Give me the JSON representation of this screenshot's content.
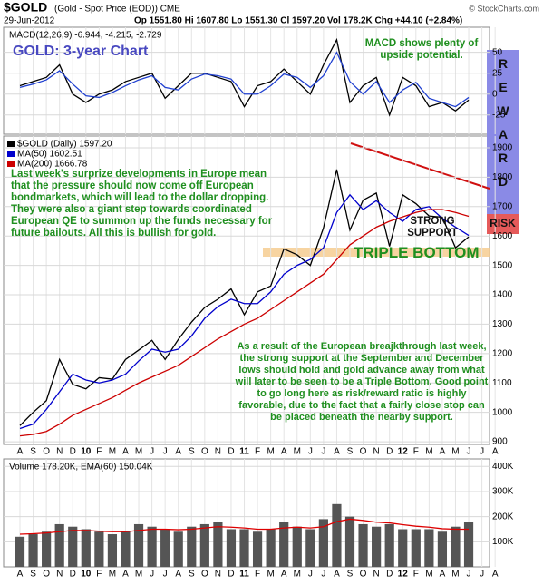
{
  "header": {
    "symbol": "$GOLD",
    "description": "(Gold - Spot Price (EOD)) CME",
    "date": "29-Jun-2012",
    "quote": "Op 1551.80 Hi 1607.80 Lo 1551.30 Cl 1597.20 Vol 178.2K Chg +44.10 (+2.84%)",
    "credit": "© StockCharts.com"
  },
  "chart_data": [
    {
      "type": "line",
      "title": "MACD(12,26,9) -6.944, -4.215, -2.729",
      "annotations": [
        "GOLD: 3-year Chart",
        "MACD shows plenty of upside potential."
      ],
      "categories": [
        "A",
        "S",
        "O",
        "N",
        "D",
        "10",
        "F",
        "M",
        "A",
        "M",
        "J",
        "J",
        "A",
        "S",
        "O",
        "N",
        "D",
        "11",
        "F",
        "M",
        "A",
        "M",
        "J",
        "J",
        "A",
        "S",
        "O",
        "N",
        "D",
        "12",
        "F",
        "M",
        "A",
        "M",
        "J",
        "J",
        "A"
      ],
      "series": [
        {
          "color": "#000000",
          "values": [
            10,
            15,
            20,
            35,
            0,
            -10,
            0,
            5,
            15,
            20,
            25,
            -5,
            10,
            25,
            25,
            20,
            15,
            -15,
            10,
            15,
            30,
            15,
            0,
            35,
            65,
            -10,
            10,
            20,
            -25,
            20,
            10,
            -15,
            -10,
            -20,
            -7,
            null,
            null
          ]
        },
        {
          "color": "#2040d0",
          "values": [
            8,
            12,
            17,
            28,
            12,
            -2,
            -4,
            2,
            10,
            17,
            22,
            8,
            5,
            18,
            24,
            22,
            18,
            0,
            0,
            10,
            24,
            20,
            8,
            22,
            50,
            15,
            0,
            15,
            -10,
            5,
            14,
            -5,
            -10,
            -15,
            -4,
            null,
            null
          ]
        }
      ],
      "ylim": [
        -48,
        80
      ],
      "yticks": [
        -25,
        0,
        25,
        50
      ],
      "grid": true
    },
    {
      "type": "line",
      "annotations": [
        "Last week's surprize developments in Europe mean that the pressure should now come off European bondmarkets, which will lead to the dollar dropping. They were also a giant step towards coordinated European QE to summon up the funds necessary for future bailouts. All this is bullish for gold.",
        "STRONG SUPPORT",
        "TRIPLE BOTTOM",
        "As a result of the European breajkthrough last week, the strong support at the September and December lows should hold and gold advance away from what will later to be seen to be a Triple Bottom. Good point to go long here as risk/reward ratio is highly favorable, due to the fact that a fairly close stop can be placed beneath the nearby support.",
        "REWARD",
        "RISK"
      ],
      "categories": [
        "A",
        "S",
        "O",
        "N",
        "D",
        "10",
        "F",
        "M",
        "A",
        "M",
        "J",
        "J",
        "A",
        "S",
        "O",
        "N",
        "D",
        "11",
        "F",
        "M",
        "A",
        "M",
        "J",
        "J",
        "A",
        "S",
        "O",
        "N",
        "D",
        "12",
        "F",
        "M",
        "A",
        "M",
        "J",
        "J",
        "A"
      ],
      "series": [
        {
          "name": "$GOLD (Daily) 1597.20",
          "color": "#000000",
          "values": [
            955,
            1000,
            1040,
            1180,
            1095,
            1080,
            1118,
            1113,
            1180,
            1212,
            1245,
            1180,
            1248,
            1307,
            1357,
            1385,
            1420,
            1332,
            1410,
            1430,
            1556,
            1536,
            1500,
            1628,
            1826,
            1620,
            1722,
            1746,
            1565,
            1740,
            1710,
            1668,
            1664,
            1560,
            1597,
            null,
            null
          ]
        },
        {
          "name": "MA(50) 1602.51",
          "color": "#0000cc",
          "values": [
            945,
            960,
            1010,
            1070,
            1130,
            1110,
            1100,
            1110,
            1130,
            1175,
            1215,
            1205,
            1215,
            1260,
            1320,
            1360,
            1385,
            1370,
            1370,
            1410,
            1470,
            1500,
            1520,
            1560,
            1680,
            1740,
            1690,
            1720,
            1680,
            1650,
            1690,
            1700,
            1660,
            1630,
            1602,
            null,
            null
          ]
        },
        {
          "name": "MA(200) 1666.78",
          "color": "#cc0000",
          "values": [
            920,
            925,
            935,
            960,
            990,
            1010,
            1030,
            1050,
            1075,
            1100,
            1120,
            1140,
            1160,
            1190,
            1220,
            1250,
            1275,
            1300,
            1320,
            1350,
            1380,
            1410,
            1440,
            1470,
            1520,
            1570,
            1600,
            1630,
            1650,
            1665,
            1680,
            1690,
            1690,
            1680,
            1667,
            null,
            null
          ]
        }
      ],
      "ylim": [
        891,
        1940
      ],
      "yticks": [
        900,
        1000,
        1100,
        1200,
        1300,
        1400,
        1500,
        1600,
        1700,
        1800,
        1900
      ],
      "grid": true
    },
    {
      "type": "bar",
      "title": "Volume 178.20K, EMA(60) 150.04K",
      "categories": [
        "A",
        "S",
        "O",
        "N",
        "D",
        "10",
        "F",
        "M",
        "A",
        "M",
        "J",
        "J",
        "A",
        "S",
        "O",
        "N",
        "D",
        "11",
        "F",
        "M",
        "A",
        "M",
        "J",
        "J",
        "A",
        "S",
        "O",
        "N",
        "D",
        "12",
        "F",
        "M",
        "A",
        "M",
        "J",
        "J",
        "A"
      ],
      "series": [
        {
          "color": "#555555",
          "values": [
            120000,
            130000,
            140000,
            170000,
            160000,
            150000,
            140000,
            130000,
            140000,
            170000,
            160000,
            150000,
            140000,
            160000,
            170000,
            180000,
            150000,
            150000,
            140000,
            150000,
            180000,
            160000,
            150000,
            190000,
            250000,
            200000,
            170000,
            160000,
            170000,
            150000,
            150000,
            150000,
            140000,
            160000,
            178200,
            null,
            null
          ]
        },
        {
          "type": "line",
          "color": "#dd0000",
          "values": [
            130000,
            132000,
            135000,
            140000,
            145000,
            145000,
            142000,
            140000,
            140000,
            145000,
            150000,
            150000,
            148000,
            150000,
            155000,
            160000,
            158000,
            155000,
            150000,
            150000,
            155000,
            158000,
            155000,
            160000,
            180000,
            190000,
            185000,
            178000,
            175000,
            168000,
            162000,
            158000,
            152000,
            150000,
            150040,
            null,
            null
          ]
        }
      ],
      "ylim": [
        0,
        430000
      ],
      "yticks": [
        {
          "value": 100000,
          "label": "100K"
        },
        {
          "value": 200000,
          "label": "200K"
        },
        {
          "value": 300000,
          "label": "300K"
        },
        {
          "value": 400000,
          "label": "400K"
        }
      ],
      "grid": true
    }
  ]
}
